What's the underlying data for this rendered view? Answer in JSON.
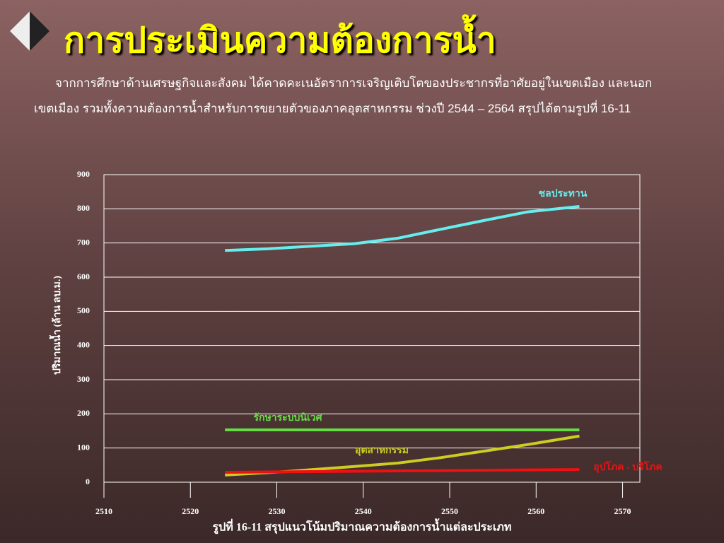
{
  "slide_title": "การประเมินความต้องการน้ำ",
  "body_lines": [
    "จากการศึกษาด้านเศรษฐกิจและสังคม  ได้คาดคะเนอัตราการเจริญเติบโตของประชากรที่อาศัยอยู่ในเขตเมือง  และนอก",
    "เขตเมือง  รวมทั้งความต้องการน้ำสำหรับการขยายตัวของภาคอุตสาหกรรม  ช่วงปี 2544 – 2564 สรุปได้ตามรูปที่ 16-11"
  ],
  "chart_data": {
    "type": "line",
    "caption": "รูปที่ 16-11  สรุปแนวโน้มปริมาณความต้องการน้ำแต่ละประเภท",
    "y_label": "ปริมาณน้ำ (ล้าน ลบ.ม.)",
    "xlim": [
      2510,
      2572
    ],
    "xticks": [
      2510,
      2520,
      2530,
      2540,
      2550,
      2560,
      2570
    ],
    "ylim": [
      0,
      900
    ],
    "yticks": [
      0,
      100,
      200,
      300,
      400,
      500,
      600,
      700,
      800,
      900
    ],
    "grid": true,
    "series": [
      {
        "name": "ชลประทาน",
        "color": "#66eeee",
        "x": [
          2524,
          2529,
          2539,
          2544,
          2548,
          2554,
          2559,
          2565
        ],
        "values": [
          678,
          683,
          698,
          714,
          735,
          766,
          791,
          807
        ]
      },
      {
        "name": "รักษาระบบนิเวศ",
        "color": "#66dd44",
        "x": [
          2524,
          2565
        ],
        "values": [
          153,
          153
        ]
      },
      {
        "name": "อุตสาหกรรม",
        "color": "#cccc22",
        "x": [
          2524,
          2531,
          2539,
          2544,
          2549,
          2554,
          2559,
          2565
        ],
        "values": [
          21,
          31,
          46,
          56,
          72,
          91,
          110,
          135
        ]
      },
      {
        "name": "อุปโภค - บริโภค",
        "color": "#ee1111",
        "x": [
          2524,
          2544,
          2565
        ],
        "values": [
          29,
          33,
          37
        ]
      }
    ]
  }
}
